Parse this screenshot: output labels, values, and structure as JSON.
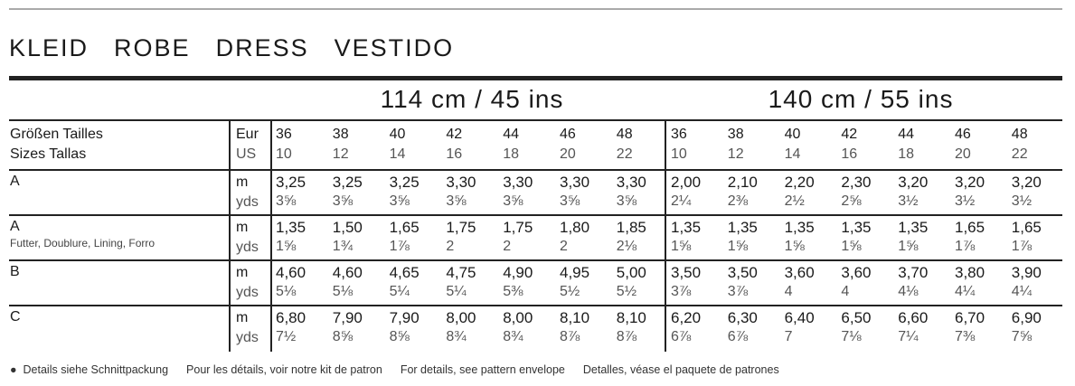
{
  "title": [
    "KLEID",
    "ROBE",
    "DRESS",
    "VESTIDO"
  ],
  "widths": [
    "114 cm / 45 ins",
    "140 cm / 55 ins"
  ],
  "header": {
    "line1": "Größen  Tailles",
    "line2": "Sizes  Tallas",
    "eur": "Eur",
    "us": "US"
  },
  "sizes_eur": [
    "36",
    "38",
    "40",
    "42",
    "44",
    "46",
    "48"
  ],
  "sizes_us": [
    "10",
    "12",
    "14",
    "16",
    "18",
    "20",
    "22"
  ],
  "unit_m": "m",
  "unit_yds": "yds",
  "rows": [
    {
      "label": "A",
      "sub": "",
      "m": [
        "3,25",
        "3,25",
        "3,25",
        "3,30",
        "3,30",
        "3,30",
        "3,30",
        "2,00",
        "2,10",
        "2,20",
        "2,30",
        "3,20",
        "3,20",
        "3,20"
      ],
      "yds": [
        "3⅝",
        "3⅝",
        "3⅝",
        "3⅝",
        "3⅝",
        "3⅝",
        "3⅝",
        "2¼",
        "2⅜",
        "2½",
        "2⅝",
        "3½",
        "3½",
        "3½"
      ]
    },
    {
      "label": "A",
      "sub": "Futter, Doublure, Lining, Forro",
      "m": [
        "1,35",
        "1,50",
        "1,65",
        "1,75",
        "1,75",
        "1,80",
        "1,85",
        "1,35",
        "1,35",
        "1,35",
        "1,35",
        "1,35",
        "1,65",
        "1,65"
      ],
      "yds": [
        "1⅝",
        "1¾",
        "1⅞",
        "2",
        "2",
        "2",
        "2⅛",
        "1⅝",
        "1⅝",
        "1⅝",
        "1⅝",
        "1⅝",
        "1⅞",
        "1⅞"
      ]
    },
    {
      "label": "B",
      "sub": "",
      "m": [
        "4,60",
        "4,60",
        "4,65",
        "4,75",
        "4,90",
        "4,95",
        "5,00",
        "3,50",
        "3,50",
        "3,60",
        "3,60",
        "3,70",
        "3,80",
        "3,90"
      ],
      "yds": [
        "5⅛",
        "5⅛",
        "5¼",
        "5¼",
        "5⅜",
        "5½",
        "5½",
        "3⅞",
        "3⅞",
        "4",
        "4",
        "4⅛",
        "4¼",
        "4¼"
      ]
    },
    {
      "label": "C",
      "sub": "",
      "m": [
        "6,80",
        "7,90",
        "7,90",
        "8,00",
        "8,00",
        "8,10",
        "8,10",
        "6,20",
        "6,30",
        "6,40",
        "6,50",
        "6,60",
        "6,70",
        "6,90"
      ],
      "yds": [
        "7½",
        "8⅝",
        "8⅝",
        "8¾",
        "8¾",
        "8⅞",
        "8⅞",
        "6⅞",
        "6⅞",
        "7",
        "7⅛",
        "7¼",
        "7⅜",
        "7⅝"
      ]
    }
  ],
  "footer": [
    "Details siehe Schnittpackung",
    "Pour les détails, voir notre kit de patron",
    "For details, see pattern envelope",
    "Detalles, véase el paquete de patrones"
  ]
}
